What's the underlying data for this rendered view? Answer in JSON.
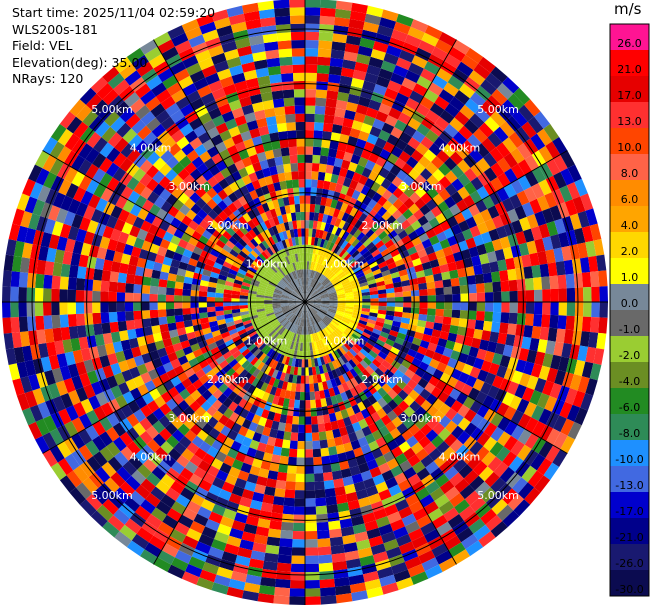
{
  "header": {
    "start_time": "Start time: 2025/11/04 02:59:20",
    "instrument": "WLS200s-181",
    "field": "Field: VEL",
    "elevation": "Elevation(deg): 35.00",
    "nrays": "NRays: 120"
  },
  "colorbar": {
    "unit": "m/s",
    "ticks": [
      "26.0",
      "21.0",
      "17.0",
      "13.0",
      "10.0",
      "8.0",
      "6.0",
      "4.0",
      "2.0",
      "1.0",
      "0.0",
      "-1.0",
      "-2.0",
      "-4.0",
      "-6.0",
      "-8.0",
      "-10.0",
      "-13.0",
      "-17.0",
      "-21.0",
      "-26.0",
      "-30.0"
    ],
    "colors": [
      "#ff1493",
      "#ff0000",
      "#e60000",
      "#ff3030",
      "#ff4500",
      "#ff6347",
      "#ff8c00",
      "#ffa500",
      "#ffd700",
      "#ffff00",
      "#778899",
      "#696969",
      "#9acd32",
      "#6b8e23",
      "#228b22",
      "#2e8b57",
      "#1e90ff",
      "#4169e1",
      "#0000cd",
      "#00008b",
      "#191970",
      "#0b0b50"
    ]
  },
  "chart_data": {
    "type": "heatmap",
    "projection": "polar PPI scan",
    "field": "VEL",
    "units": "m/s",
    "n_rays": 120,
    "elevation_deg": 35.0,
    "range_rings_km": [
      1.0,
      2.0,
      3.0,
      4.0,
      5.0
    ],
    "ring_labels": [
      "1.00km",
      "2.00km",
      "3.00km",
      "4.00km",
      "5.00km"
    ],
    "max_range_km": 5.55,
    "value_range": [
      -30.0,
      26.0
    ],
    "near_field": {
      "within_km": 1.1,
      "west_velocity_range": [
        -2.0,
        -1.0
      ],
      "east_velocity_range": [
        1.0,
        4.0
      ]
    },
    "far_field": "noisy, spans full colour scale"
  }
}
